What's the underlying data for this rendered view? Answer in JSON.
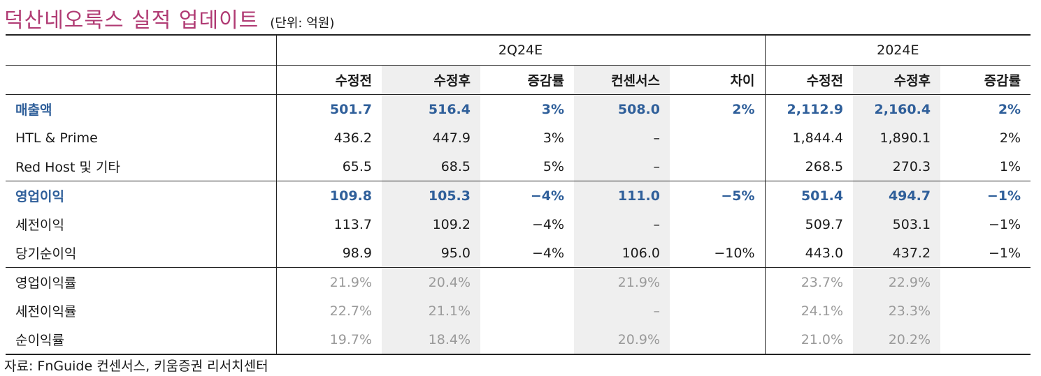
{
  "title": "덕산네오룩스 실적 업데이트",
  "unit": "(단위: 억원)",
  "groups": {
    "g1": "2Q24E",
    "g2": "2024E"
  },
  "headers": [
    "수정전",
    "수정후",
    "증감률",
    "컨센서스",
    "차이",
    "수정전",
    "수정후",
    "증감률"
  ],
  "rows": [
    {
      "label": "매출액",
      "cells": [
        "501.7",
        "516.4",
        "3%",
        "508.0",
        "2%",
        "2,112.9",
        "2,160.4",
        "2%"
      ]
    },
    {
      "label": "HTL & Prime",
      "cells": [
        "436.2",
        "447.9",
        "3%",
        "–",
        "",
        "1,844.4",
        "1,890.1",
        "2%"
      ]
    },
    {
      "label": "Red Host 및 기타",
      "cells": [
        "65.5",
        "68.5",
        "5%",
        "–",
        "",
        "268.5",
        "270.3",
        "1%"
      ]
    },
    {
      "label": "영업이익",
      "cells": [
        "109.8",
        "105.3",
        "−4%",
        "111.0",
        "−5%",
        "501.4",
        "494.7",
        "−1%"
      ]
    },
    {
      "label": "세전이익",
      "cells": [
        "113.7",
        "109.2",
        "−4%",
        "–",
        "",
        "509.7",
        "503.1",
        "−1%"
      ]
    },
    {
      "label": "당기순이익",
      "cells": [
        "98.9",
        "95.0",
        "−4%",
        "106.0",
        "−10%",
        "443.0",
        "437.2",
        "−1%"
      ]
    },
    {
      "label": "영업이익률",
      "cells": [
        "21.9%",
        "20.4%",
        "",
        "21.9%",
        "",
        "23.7%",
        "22.9%",
        ""
      ]
    },
    {
      "label": "세전이익률",
      "cells": [
        "22.7%",
        "21.1%",
        "",
        "–",
        "",
        "24.1%",
        "23.3%",
        ""
      ]
    },
    {
      "label": "순이익률",
      "cells": [
        "19.7%",
        "18.4%",
        "",
        "20.9%",
        "",
        "21.0%",
        "20.2%",
        ""
      ]
    }
  ],
  "footnote": "자료: FnGuide 컨센서스, 키움증권 리서치센터"
}
